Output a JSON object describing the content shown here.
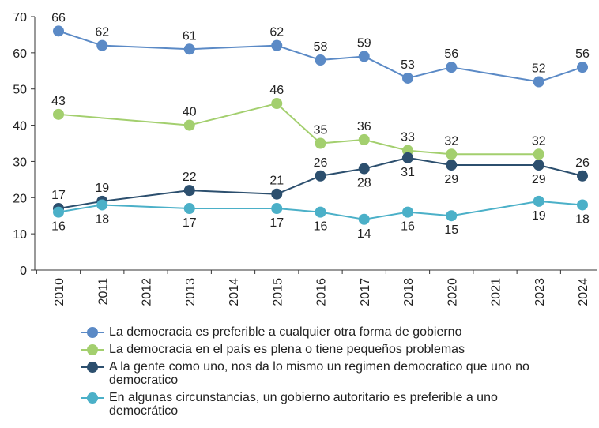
{
  "chart_data": {
    "type": "line",
    "categories": [
      "2010",
      "2011",
      "2012",
      "2013",
      "2014",
      "2015",
      "2016",
      "2017",
      "2018",
      "2020",
      "2021",
      "2023",
      "2024"
    ],
    "series": [
      {
        "name": "La democracia es preferible a cualquier otra forma de gobierno",
        "color": "#5b8ac6",
        "values": [
          66,
          62,
          null,
          61,
          null,
          62,
          58,
          59,
          53,
          56,
          null,
          52,
          56
        ]
      },
      {
        "name": "La democracia en el país es plena o tiene pequeños problemas",
        "color": "#a3cf6e",
        "values": [
          43,
          null,
          null,
          40,
          null,
          46,
          35,
          36,
          33,
          32,
          null,
          32,
          null
        ]
      },
      {
        "name": "A la gente como uno, nos da lo mismo un regimen democratico que uno no democratico",
        "color": "#2c4f6e",
        "values": [
          17,
          19,
          null,
          22,
          null,
          21,
          26,
          28,
          31,
          29,
          null,
          29,
          26
        ]
      },
      {
        "name": "En algunas circunstancias, un gobierno autoritario es preferible a uno democrático",
        "color": "#4bb0c8",
        "values": [
          16,
          18,
          null,
          17,
          null,
          17,
          16,
          14,
          16,
          15,
          null,
          19,
          18
        ]
      }
    ],
    "ylim": [
      0,
      70
    ],
    "yticks": [
      0,
      10,
      20,
      30,
      40,
      50,
      60,
      70
    ]
  }
}
